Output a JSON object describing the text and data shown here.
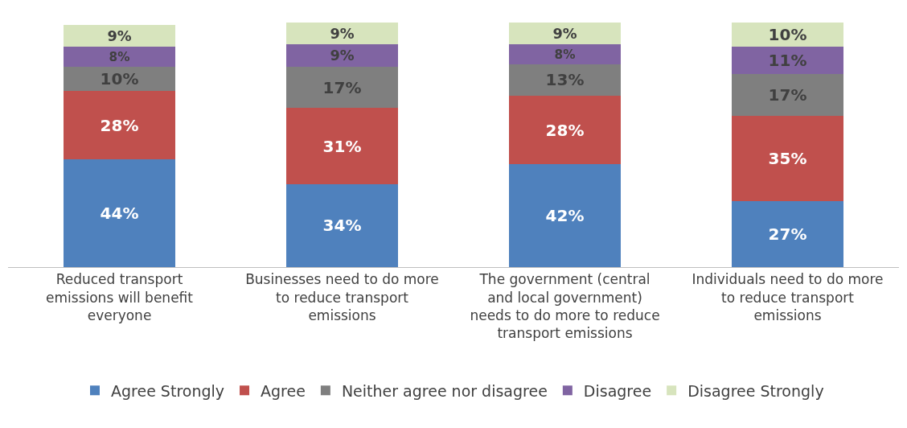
{
  "chart_data": {
    "type": "bar",
    "stacked": true,
    "legend": "bottom",
    "categories": [
      "Reduced transport\nemissions will benefit\neveryone",
      "Businesses need to do more\nto reduce transport\nemissions",
      "The government (central\nand local government)\nneeds to do more to reduce\ntransport emissions",
      "Individuals need to do more\nto reduce transport\nemissions"
    ],
    "series": [
      {
        "name": "Agree Strongly",
        "color": "#4f81bd",
        "values": [
          44,
          34,
          42,
          27
        ],
        "value_labels": [
          "44%",
          "34%",
          "42%",
          "27%"
        ]
      },
      {
        "name": "Agree",
        "color": "#c0504d",
        "values": [
          28,
          31,
          28,
          35
        ],
        "value_labels": [
          "28%",
          "31%",
          "28%",
          "35%"
        ]
      },
      {
        "name": "Neither agree nor disagree",
        "color": "#7f7f7f",
        "values": [
          10,
          17,
          13,
          17
        ],
        "value_labels": [
          "10%",
          "17%",
          "13%",
          "17%"
        ]
      },
      {
        "name": "Disagree",
        "color": "#8064a2",
        "values": [
          8,
          9,
          8,
          11
        ],
        "value_labels": [
          "8%",
          "9%",
          "8%",
          "11%"
        ]
      },
      {
        "name": "Disagree Strongly",
        "color": "#d7e4bd",
        "values": [
          9,
          9,
          9,
          10
        ],
        "value_labels": [
          "9%",
          "9%",
          "9%",
          "10%"
        ]
      }
    ]
  }
}
